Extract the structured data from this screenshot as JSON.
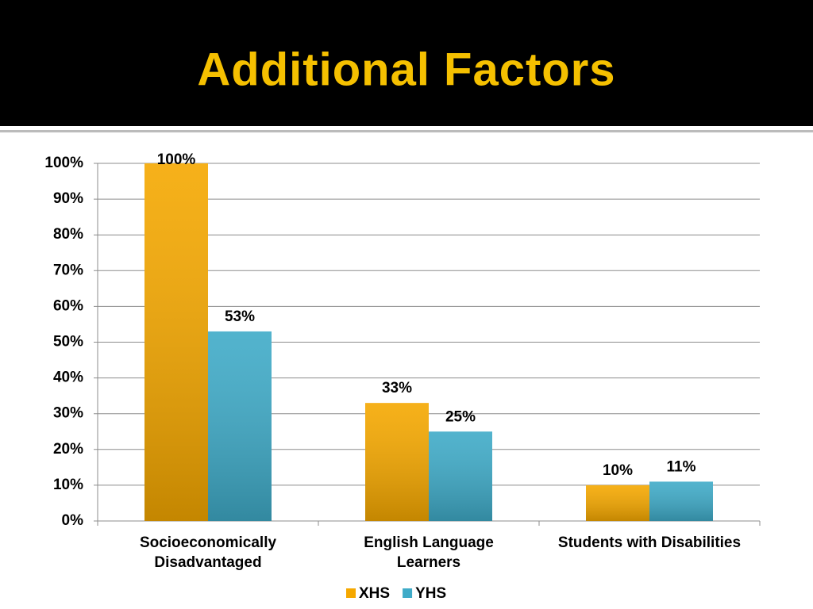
{
  "chart_data": {
    "type": "bar",
    "title": "Additional Factors",
    "categories": [
      "Socioeconomically Disadvantaged",
      "English Language Learners",
      "Students with Disabilities"
    ],
    "series": [
      {
        "name": "XHS",
        "color": "#f5a800",
        "values": [
          100,
          33,
          10
        ],
        "value_labels": [
          "100%",
          "33%",
          "10%"
        ]
      },
      {
        "name": "YHS",
        "color": "#3fabc8",
        "values": [
          53,
          25,
          11
        ],
        "value_labels": [
          "53%",
          "25%",
          "11%"
        ]
      }
    ],
    "ylim": [
      0,
      100
    ],
    "yticks": [
      {
        "value": 0,
        "label": "0%"
      },
      {
        "value": 10,
        "label": "10%"
      },
      {
        "value": 20,
        "label": "20%"
      },
      {
        "value": 30,
        "label": "30%"
      },
      {
        "value": 40,
        "label": "40%"
      },
      {
        "value": 50,
        "label": "50%"
      },
      {
        "value": 60,
        "label": "60%"
      },
      {
        "value": 70,
        "label": "70%"
      },
      {
        "value": 80,
        "label": "80%"
      },
      {
        "value": 90,
        "label": "90%"
      },
      {
        "value": 100,
        "label": "100%"
      }
    ],
    "grid": true,
    "legend": "bottom"
  }
}
